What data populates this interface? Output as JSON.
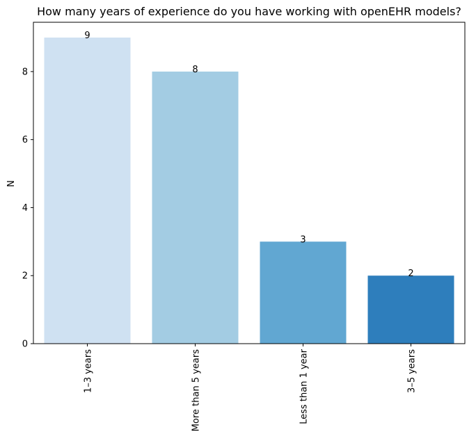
{
  "chart_data": {
    "type": "bar",
    "title": "How many years of experience do you have working with openEHR models?",
    "xlabel": "",
    "ylabel": "N",
    "categories": [
      "1–3 years",
      "More than 5 years",
      "Less than 1 year",
      "3–5 years"
    ],
    "values": [
      9,
      8,
      3,
      2
    ],
    "bar_colors": [
      "#cfe1f2",
      "#a3cce3",
      "#61a7d2",
      "#2e7ebc"
    ],
    "ylim": [
      0,
      9.45
    ],
    "yticks": [
      0,
      2,
      4,
      6,
      8
    ],
    "grid": false,
    "legend": "none",
    "data_labels": [
      "9",
      "8",
      "3",
      "2"
    ]
  }
}
